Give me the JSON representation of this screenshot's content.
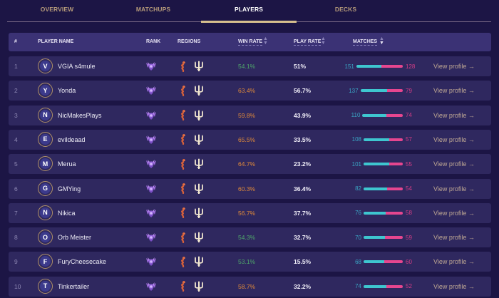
{
  "tabs": [
    {
      "label": "OVERVIEW",
      "active": false
    },
    {
      "label": "MATCHUPS",
      "active": false
    },
    {
      "label": "PLAYERS",
      "active": true
    },
    {
      "label": "DECKS",
      "active": false
    }
  ],
  "table": {
    "headers": {
      "index": "#",
      "player_name": "PLAYER NAME",
      "rank": "RANK",
      "regions": "REGIONS",
      "win_rate": "WIN RATE",
      "play_rate": "PLAY RATE",
      "matches": "MATCHES"
    },
    "sort_icons": {
      "win_rate": "sort-updown-icon",
      "play_rate": "sort-updown-icon",
      "matches": "sort-desc-icon"
    },
    "rank_icon": "master-rank-emblem-icon",
    "region_icons": [
      "shurima-dragon-icon",
      "bilgewater-trident-icon"
    ],
    "view_profile_label": "View profile →",
    "colors": {
      "win_rate_green": "#4fa86a",
      "win_rate_orange": "#e08a3a",
      "wins_bar": "#3ec6cf",
      "losses_bar": "#e6468f",
      "active_tab_underline": "#d8c08e"
    },
    "rows": [
      {
        "rank": "1",
        "initial": "V",
        "name": "VGIA s4mule",
        "win_rate": "54.1%",
        "win_color": "green",
        "play_rate": "51%",
        "wins": "151",
        "losses": "128"
      },
      {
        "rank": "2",
        "initial": "Y",
        "name": "Yonda",
        "win_rate": "63.4%",
        "win_color": "orange",
        "play_rate": "56.7%",
        "wins": "137",
        "losses": "79"
      },
      {
        "rank": "3",
        "initial": "N",
        "name": "NicMakesPlays",
        "win_rate": "59.8%",
        "win_color": "orange",
        "play_rate": "43.9%",
        "wins": "110",
        "losses": "74"
      },
      {
        "rank": "4",
        "initial": "E",
        "name": "evildeaad",
        "win_rate": "65.5%",
        "win_color": "orange",
        "play_rate": "33.5%",
        "wins": "108",
        "losses": "57"
      },
      {
        "rank": "5",
        "initial": "M",
        "name": "Merua",
        "win_rate": "64.7%",
        "win_color": "orange",
        "play_rate": "23.2%",
        "wins": "101",
        "losses": "55"
      },
      {
        "rank": "6",
        "initial": "G",
        "name": "GMYing",
        "win_rate": "60.3%",
        "win_color": "orange",
        "play_rate": "36.4%",
        "wins": "82",
        "losses": "54"
      },
      {
        "rank": "7",
        "initial": "N",
        "name": "Nikica",
        "win_rate": "56.7%",
        "win_color": "orange",
        "play_rate": "37.7%",
        "wins": "76",
        "losses": "58"
      },
      {
        "rank": "8",
        "initial": "O",
        "name": "Orb Meister",
        "win_rate": "54.3%",
        "win_color": "green",
        "play_rate": "32.7%",
        "wins": "70",
        "losses": "59"
      },
      {
        "rank": "9",
        "initial": "F",
        "name": "FuryCheesecake",
        "win_rate": "53.1%",
        "win_color": "green",
        "play_rate": "15.5%",
        "wins": "68",
        "losses": "60"
      },
      {
        "rank": "10",
        "initial": "T",
        "name": "Tinkertailer",
        "win_rate": "58.7%",
        "win_color": "orange",
        "play_rate": "32.2%",
        "wins": "74",
        "losses": "52"
      }
    ]
  }
}
